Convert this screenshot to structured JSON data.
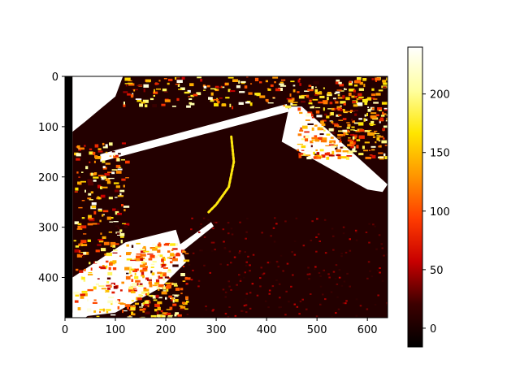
{
  "chart_data": {
    "type": "heatmap",
    "title": "",
    "xlabel": "",
    "ylabel": "",
    "image_width": 640,
    "image_height": 480,
    "xlim": [
      0,
      640
    ],
    "ylim": [
      480,
      0
    ],
    "x_ticks": [
      {
        "value": 0,
        "label": "0"
      },
      {
        "value": 100,
        "label": "100"
      },
      {
        "value": 200,
        "label": "200"
      },
      {
        "value": 300,
        "label": "300"
      },
      {
        "value": 400,
        "label": "400"
      },
      {
        "value": 500,
        "label": "500"
      },
      {
        "value": 600,
        "label": "600"
      }
    ],
    "y_ticks": [
      {
        "value": 0,
        "label": "0"
      },
      {
        "value": 100,
        "label": "100"
      },
      {
        "value": 200,
        "label": "200"
      },
      {
        "value": 300,
        "label": "300"
      },
      {
        "value": 400,
        "label": "400"
      }
    ],
    "colormap": "hot",
    "colorbar": {
      "range": [
        -16,
        240
      ],
      "ticks": [
        {
          "value": 0,
          "label": "0"
        },
        {
          "value": 50,
          "label": "50"
        },
        {
          "value": 100,
          "label": "100"
        },
        {
          "value": 150,
          "label": "150"
        },
        {
          "value": 200,
          "label": "200"
        }
      ],
      "color_stops": [
        "#000000",
        "#3d0000",
        "#c80000",
        "#ff3c00",
        "#ff9600",
        "#ffe600",
        "#ffffa0",
        "#ffffff"
      ]
    },
    "grid": false,
    "legend": "colorbar-right",
    "regions": [
      {
        "name": "left-black-strip",
        "value": -16,
        "points": [
          [
            0,
            0
          ],
          [
            15,
            0
          ],
          [
            15,
            480
          ],
          [
            0,
            480
          ]
        ]
      },
      {
        "name": "dark-background",
        "value": 5,
        "points": [
          [
            15,
            0
          ],
          [
            640,
            0
          ],
          [
            640,
            480
          ],
          [
            15,
            480
          ]
        ]
      },
      {
        "name": "white-top-left",
        "value": 240,
        "points": [
          [
            15,
            0
          ],
          [
            115,
            0
          ],
          [
            100,
            40
          ],
          [
            40,
            90
          ],
          [
            15,
            110
          ]
        ]
      },
      {
        "name": "white-plane-edge",
        "value": 240,
        "points": [
          [
            70,
            155
          ],
          [
            440,
            55
          ],
          [
            445,
            70
          ],
          [
            70,
            170
          ]
        ]
      },
      {
        "name": "white-right-wedge",
        "value": 240,
        "points": [
          [
            445,
            60
          ],
          [
            470,
            60
          ],
          [
            640,
            215
          ],
          [
            630,
            230
          ],
          [
            600,
            225
          ],
          [
            430,
            130
          ]
        ]
      },
      {
        "name": "white-bottom-left",
        "value": 240,
        "points": [
          [
            15,
            400
          ],
          [
            120,
            330
          ],
          [
            220,
            305
          ],
          [
            240,
            370
          ],
          [
            190,
            420
          ],
          [
            100,
            470
          ],
          [
            15,
            480
          ]
        ]
      },
      {
        "name": "white-bottom-edge",
        "value": 240,
        "points": [
          [
            15,
            470
          ],
          [
            220,
            340
          ],
          [
            290,
            290
          ],
          [
            295,
            298
          ],
          [
            230,
            350
          ],
          [
            40,
            480
          ],
          [
            15,
            480
          ]
        ]
      }
    ],
    "textured_bands": [
      {
        "name": "top-texture",
        "value": 180,
        "x_range": [
          115,
          640
        ],
        "y_range": [
          0,
          60
        ]
      },
      {
        "name": "left-texture",
        "value": 150,
        "x_range": [
          15,
          120
        ],
        "y_range": [
          130,
          480
        ]
      },
      {
        "name": "right-texture",
        "value": 140,
        "x_range": [
          460,
          640
        ],
        "y_range": [
          60,
          160
        ]
      },
      {
        "name": "bottom-texture",
        "value": 150,
        "x_range": [
          120,
          240
        ],
        "y_range": [
          330,
          480
        ]
      }
    ],
    "arc": {
      "name": "orange-arc",
      "value": 170,
      "points": [
        [
          330,
          120
        ],
        [
          335,
          170
        ],
        [
          325,
          220
        ],
        [
          300,
          255
        ],
        [
          285,
          270
        ]
      ]
    }
  }
}
